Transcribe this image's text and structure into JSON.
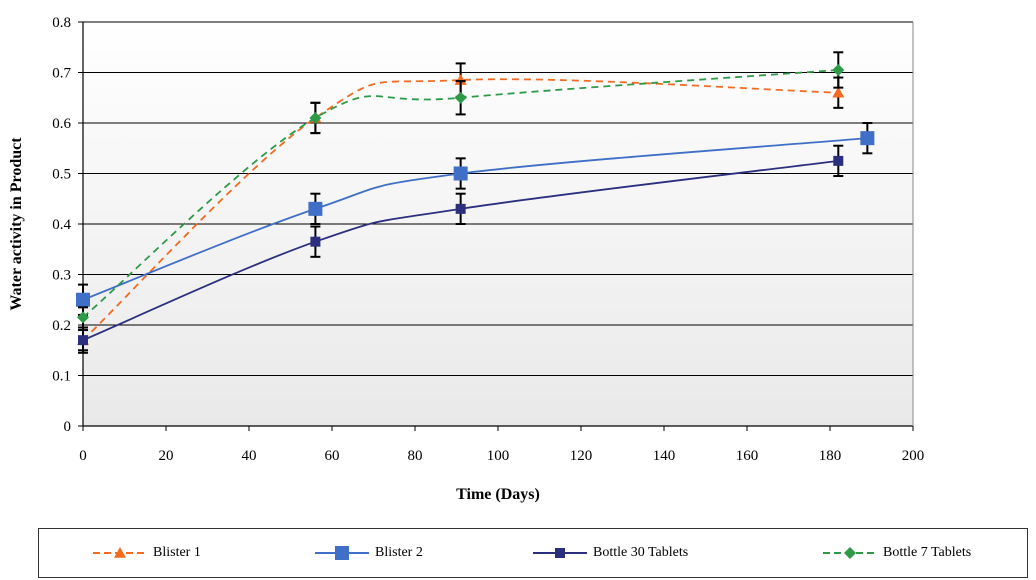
{
  "chart_data": {
    "type": "line",
    "xlabel": "Time (Days)",
    "ylabel": "Water activity in Product",
    "xlim": [
      0,
      200
    ],
    "ylim": [
      0,
      0.8
    ],
    "xticks": [
      "0",
      "20",
      "40",
      "60",
      "80",
      "100",
      "120",
      "140",
      "160",
      "180",
      "200"
    ],
    "yticks": [
      "0",
      "0.1",
      "0.2",
      "0.3",
      "0.4",
      "0.5",
      "0.6",
      "0.7",
      "0.8"
    ],
    "grid": "horizontal",
    "legend_position": "bottom",
    "series": [
      {
        "name": "Blister 1",
        "color": "#f26b21",
        "line_style": "dashed",
        "marker": "triangle",
        "x": [
          0,
          56,
          91,
          182
        ],
        "y": [
          0.17,
          0.61,
          0.685,
          0.66
        ],
        "error": [
          0.02,
          0.03,
          0.033,
          0.03
        ]
      },
      {
        "name": "Blister 2",
        "color": "#3f6fc6",
        "line_style": "solid",
        "marker": "square",
        "x": [
          0,
          56,
          91,
          189
        ],
        "y": [
          0.25,
          0.43,
          0.5,
          0.57
        ],
        "error": [
          0.03,
          0.03,
          0.03,
          0.03
        ]
      },
      {
        "name": "Bottle 30 Tablets",
        "color": "#2b2f7e",
        "line_style": "solid",
        "marker": "square",
        "x": [
          0,
          56,
          91,
          182
        ],
        "y": [
          0.17,
          0.365,
          0.43,
          0.525
        ],
        "error": [
          0.025,
          0.03,
          0.03,
          0.03
        ]
      },
      {
        "name": "Bottle 7 Tablets",
        "color": "#2e9a48",
        "line_style": "dashed",
        "marker": "diamond",
        "x": [
          0,
          56,
          91,
          182
        ],
        "y": [
          0.215,
          0.61,
          0.65,
          0.705
        ],
        "error": [
          0.02,
          0.03,
          0.033,
          0.035
        ]
      }
    ]
  }
}
